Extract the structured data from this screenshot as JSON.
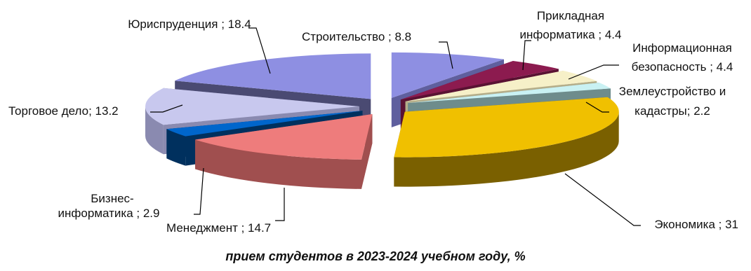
{
  "caption": "прием студентов  в 2023-2024 учебном году, %",
  "chart_data": {
    "type": "pie",
    "title": "прием студентов  в 2023-2024 учебном году, %",
    "exploded": true,
    "three_d": true,
    "slices": [
      {
        "name": "Строительство",
        "value": 8.8,
        "label": "Строительство ; 8.8",
        "color": "#8E8FE2",
        "side": "#5F5F9E"
      },
      {
        "name": "Прикладная информатика",
        "value": 4.4,
        "label": "Прикладная информатика ; 4.4",
        "color": "#8C1B4F",
        "side": "#5A1233"
      },
      {
        "name": "Информационная безопасность",
        "value": 4.4,
        "label": "Информационная безопасность ; 4.4",
        "color": "#F6F0C8",
        "side": "#B5AE8A"
      },
      {
        "name": "Землеустройство и кадастры",
        "value": 2.2,
        "label": "Землеустройство и кадастры; 2.2",
        "color": "#C9F1F3",
        "side": "#6E8C8C"
      },
      {
        "name": "Экономика",
        "value": 31,
        "label": "Экономика ; 31",
        "color": "#F0C000",
        "side": "#7A6000"
      },
      {
        "name": "Менеджмент",
        "value": 14.7,
        "label": "Менеджмент  ; 14.7",
        "color": "#EE7C7C",
        "side": "#A04F4F"
      },
      {
        "name": "Бизнес-информатика",
        "value": 2.9,
        "label": "Бизнес-информатика ; 2.9",
        "color": "#0066CC",
        "side": "#00305E"
      },
      {
        "name": "Торговое дело",
        "value": 13.2,
        "label": "Торговое дело; 13.2",
        "color": "#C8C8EE",
        "side": "#8A8AB0"
      },
      {
        "name": "Юриспруденция",
        "value": 18.4,
        "label": "Юриспруденция ; 18.4",
        "color": "#8E8FE2",
        "side": "#4A4A72"
      }
    ]
  }
}
